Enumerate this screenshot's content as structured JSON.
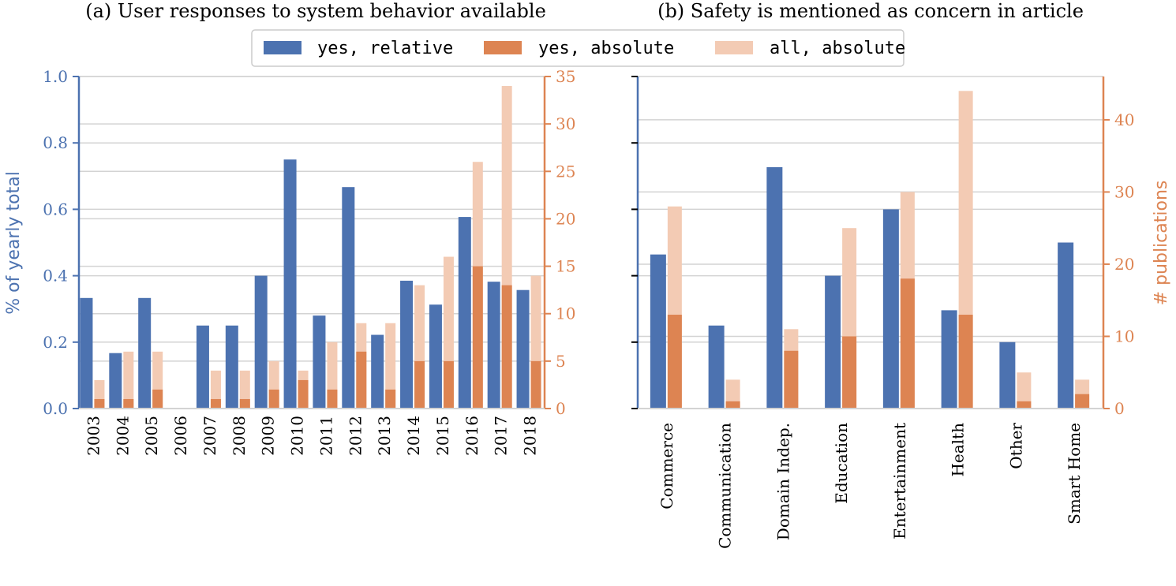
{
  "colors": {
    "blue": "#4c72b0",
    "orange": "#dd8452",
    "light_orange": "#f3cbb4",
    "grid": "#d3d3d3"
  },
  "legend": {
    "items": [
      "yes, relative",
      "yes, absolute",
      "all, absolute"
    ]
  },
  "chart_data": [
    {
      "type": "bar",
      "title": "(a) User responses to system behavior available",
      "categories": [
        "2003",
        "2004",
        "2005",
        "2006",
        "2007",
        "2008",
        "2009",
        "2010",
        "2011",
        "2012",
        "2013",
        "2014",
        "2015",
        "2016",
        "2017",
        "2018"
      ],
      "series": [
        {
          "name": "yes, relative",
          "axis": "left",
          "values": [
            0.333,
            0.167,
            0.333,
            0,
            0.25,
            0.25,
            0.4,
            0.75,
            0.28,
            0.667,
            0.222,
            0.385,
            0.313,
            0.577,
            0.382,
            0.357
          ]
        },
        {
          "name": "yes, absolute",
          "axis": "right",
          "values": [
            1,
            1,
            2,
            0,
            1,
            1,
            2,
            3,
            2,
            6,
            2,
            5,
            5,
            15,
            13,
            5
          ]
        },
        {
          "name": "all, absolute",
          "axis": "right",
          "values": [
            3,
            6,
            6,
            0,
            4,
            4,
            5,
            4,
            7,
            9,
            9,
            13,
            16,
            26,
            34,
            14
          ]
        }
      ],
      "ylabel_left": "% of yearly total",
      "ylabel_right": "",
      "ylim_left": [
        0,
        1.0
      ],
      "ylim_right": [
        0,
        35
      ],
      "yticks_left": [
        "0.0",
        "0.2",
        "0.4",
        "0.6",
        "0.8",
        "1.0"
      ],
      "yticks_right": [
        "0",
        "5",
        "10",
        "15",
        "20",
        "25",
        "30",
        "35"
      ],
      "grid": true
    },
    {
      "type": "bar",
      "title": "(b) Safety is mentioned as concern in article",
      "categories": [
        "Commerce",
        "Communication",
        "Domain Indep.",
        "Education",
        "Entertainment",
        "Health",
        "Other",
        "Smart Home"
      ],
      "series": [
        {
          "name": "yes, relative",
          "axis": "left",
          "values": [
            0.464,
            0.25,
            0.727,
            0.4,
            0.6,
            0.296,
            0.2,
            0.5
          ]
        },
        {
          "name": "yes, absolute",
          "axis": "right",
          "values": [
            13,
            1,
            8,
            10,
            18,
            13,
            1,
            2
          ]
        },
        {
          "name": "all, absolute",
          "axis": "right",
          "values": [
            28,
            4,
            11,
            25,
            30,
            44,
            5,
            4
          ]
        }
      ],
      "ylabel_left": "",
      "ylabel_right": "# publications",
      "ylim_left": [
        0,
        1.0
      ],
      "ylim_right": [
        0,
        46
      ],
      "yticks_left": [],
      "yticks_right": [
        "0",
        "10",
        "20",
        "30",
        "40"
      ],
      "grid": true
    }
  ]
}
